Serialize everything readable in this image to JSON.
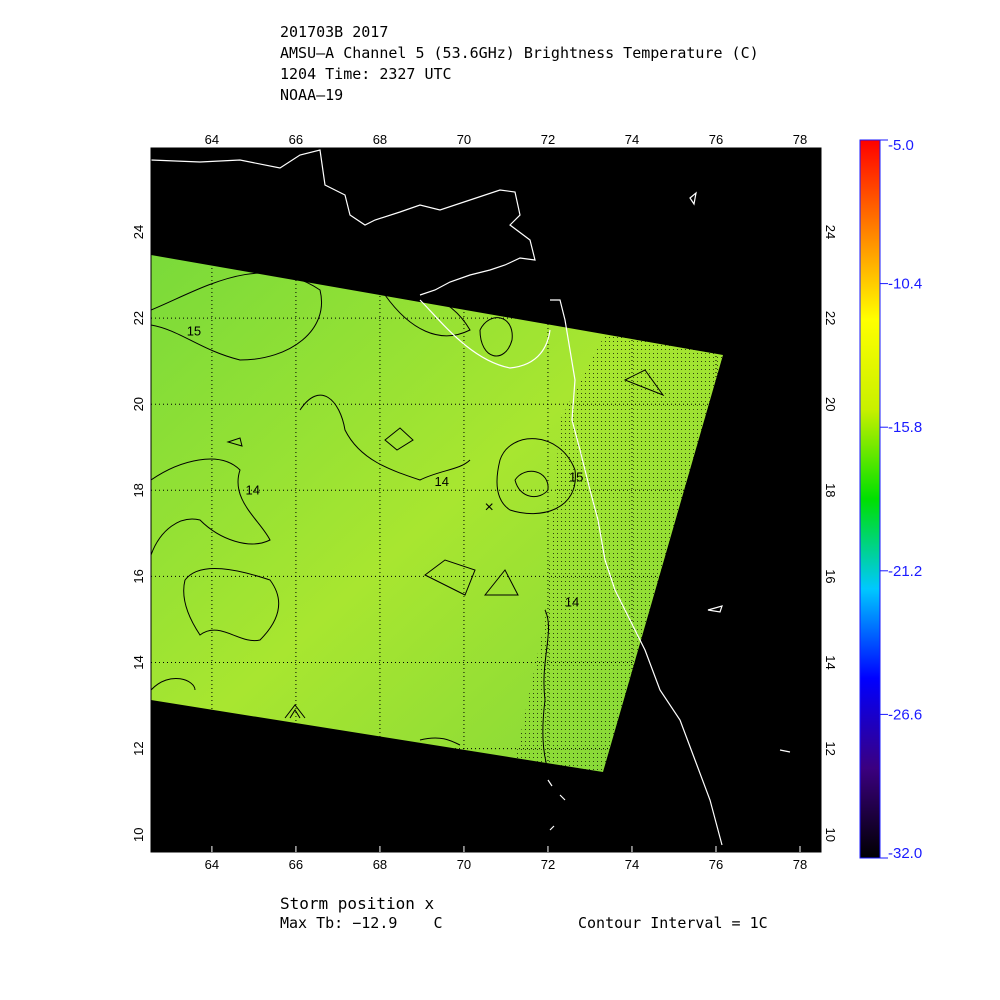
{
  "title": {
    "line1": "201703B 2017",
    "line2": "AMSU–A Channel 5 (53.6GHz) Brightness Temperature (C)",
    "line3": "1204 Time: 2327 UTC",
    "line4": "NOAA–19"
  },
  "footer": {
    "storm_position": "Storm position x",
    "max_tb": "Max Tb: −12.9    C",
    "contour_interval": "Contour Interval = 1C"
  },
  "chart_data": {
    "type": "heatmap",
    "xlabel": "",
    "ylabel": "",
    "xlim": [
      62.55,
      78.5
    ],
    "ylim": [
      9.6,
      25.95
    ],
    "x_ticks": [
      64,
      66,
      68,
      70,
      72,
      74,
      76,
      78
    ],
    "y_ticks": [
      10,
      12,
      14,
      16,
      18,
      20,
      22,
      24
    ],
    "grid": "dotted",
    "storm_position": {
      "lon": 70.6,
      "lat": 17.6,
      "marker": "x"
    },
    "contour_labels": [
      {
        "text": "15",
        "lon": 63.4,
        "lat": 21.6
      },
      {
        "text": "14",
        "lon": 64.8,
        "lat": 17.9
      },
      {
        "text": "14",
        "lon": 69.3,
        "lat": 18.1
      },
      {
        "text": "15",
        "lon": 72.5,
        "lat": 18.2
      },
      {
        "text": "14",
        "lon": 72.4,
        "lat": 15.3
      }
    ],
    "colorbar": {
      "min": -32.0,
      "max": -5.0,
      "tick_labels": [
        "-5.0",
        "-10.4",
        "-15.8",
        "-21.2",
        "-26.6",
        "-32.0"
      ],
      "tick_values": [
        -5.0,
        -10.4,
        -15.8,
        -21.2,
        -26.6,
        -32.0
      ],
      "colors": [
        "#000000",
        "#3b0080",
        "#0000ff",
        "#00c8ff",
        "#00e000",
        "#c8f000",
        "#ffff00",
        "#ff8000",
        "#ff0000"
      ]
    },
    "swath_color": "#8ee03a",
    "background_color": "#000000",
    "coastline_color": "#ffffff"
  }
}
